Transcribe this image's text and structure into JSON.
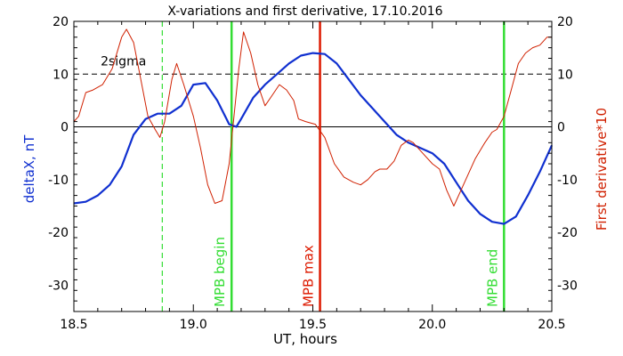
{
  "chart_data": {
    "type": "line",
    "title": "X-variations and first derivative, 17.10.2016",
    "xlabel": "UT, hours",
    "ylabel_left": "deltaX, nT",
    "ylabel_right": "First derivative*10",
    "xlim": [
      18.5,
      20.5
    ],
    "ylim": [
      -35,
      20
    ],
    "x_ticks": [
      "18.5",
      "19.0",
      "19.5",
      "20.0",
      "20.5"
    ],
    "y_ticks": [
      "20",
      "10",
      "0",
      "-10",
      "-20",
      "-30"
    ],
    "grid": false,
    "colors": {
      "deltaX": "#1030d0",
      "derivative": "#d02000",
      "mpb_green": "#33dd33",
      "mpb_max_red": "#dd1a00",
      "axes": "#000000"
    },
    "reference_lines": [
      {
        "y": 10,
        "style": "dashed",
        "label": "2sigma"
      },
      {
        "y": 0,
        "style": "solid"
      }
    ],
    "markers": [
      {
        "x": 18.87,
        "style": "dashed",
        "color": "green",
        "label": ""
      },
      {
        "x": 19.16,
        "style": "solid",
        "color": "green",
        "label": "MPB begin"
      },
      {
        "x": 19.53,
        "style": "solid",
        "color": "red",
        "label": "MPB max"
      },
      {
        "x": 20.3,
        "style": "solid",
        "color": "green",
        "label": "MPB end"
      }
    ],
    "series": [
      {
        "axis": "left",
        "color": "#1030d0",
        "points": [
          [
            18.5,
            -14.5
          ],
          [
            18.55,
            -14.2
          ],
          [
            18.6,
            -13
          ],
          [
            18.65,
            -11
          ],
          [
            18.7,
            -7.5
          ],
          [
            18.75,
            -1.5
          ],
          [
            18.8,
            1.5
          ],
          [
            18.85,
            2.5
          ],
          [
            18.9,
            2.5
          ],
          [
            18.95,
            4
          ],
          [
            19.0,
            8
          ],
          [
            19.05,
            8.3
          ],
          [
            19.1,
            5
          ],
          [
            19.15,
            0.5
          ],
          [
            19.18,
            0
          ],
          [
            19.2,
            1.5
          ],
          [
            19.25,
            5.5
          ],
          [
            19.3,
            8
          ],
          [
            19.35,
            10
          ],
          [
            19.4,
            12
          ],
          [
            19.45,
            13.5
          ],
          [
            19.5,
            14
          ],
          [
            19.55,
            13.8
          ],
          [
            19.6,
            12
          ],
          [
            19.65,
            9
          ],
          [
            19.7,
            6
          ],
          [
            19.75,
            3.5
          ],
          [
            19.8,
            1
          ],
          [
            19.85,
            -1.5
          ],
          [
            19.9,
            -3
          ],
          [
            19.95,
            -4
          ],
          [
            20.0,
            -5
          ],
          [
            20.05,
            -7
          ],
          [
            20.1,
            -10.5
          ],
          [
            20.15,
            -14
          ],
          [
            20.2,
            -16.5
          ],
          [
            20.25,
            -18
          ],
          [
            20.3,
            -18.4
          ],
          [
            20.35,
            -17
          ],
          [
            20.4,
            -13
          ],
          [
            20.45,
            -8.5
          ],
          [
            20.5,
            -3.5
          ]
        ]
      },
      {
        "axis": "right",
        "color": "#d02000",
        "points": [
          [
            18.5,
            1
          ],
          [
            18.52,
            2
          ],
          [
            18.55,
            6.5
          ],
          [
            18.58,
            7
          ],
          [
            18.62,
            8
          ],
          [
            18.66,
            11
          ],
          [
            18.7,
            17
          ],
          [
            18.72,
            18.5
          ],
          [
            18.75,
            16
          ],
          [
            18.78,
            9
          ],
          [
            18.81,
            2
          ],
          [
            18.84,
            -0.5
          ],
          [
            18.86,
            -2
          ],
          [
            18.88,
            1
          ],
          [
            18.91,
            9
          ],
          [
            18.93,
            12
          ],
          [
            18.96,
            8
          ],
          [
            19.0,
            2
          ],
          [
            19.03,
            -4
          ],
          [
            19.06,
            -11
          ],
          [
            19.09,
            -14.5
          ],
          [
            19.12,
            -14
          ],
          [
            19.15,
            -7
          ],
          [
            19.17,
            2
          ],
          [
            19.19,
            11
          ],
          [
            19.21,
            18
          ],
          [
            19.24,
            14
          ],
          [
            19.27,
            8
          ],
          [
            19.3,
            4
          ],
          [
            19.33,
            6
          ],
          [
            19.36,
            8
          ],
          [
            19.39,
            7
          ],
          [
            19.42,
            5
          ],
          [
            19.44,
            1.5
          ],
          [
            19.47,
            1
          ],
          [
            19.51,
            0.5
          ],
          [
            19.55,
            -2
          ],
          [
            19.59,
            -7
          ],
          [
            19.63,
            -9.5
          ],
          [
            19.67,
            -10.5
          ],
          [
            19.7,
            -11
          ],
          [
            19.73,
            -10
          ],
          [
            19.76,
            -8.5
          ],
          [
            19.78,
            -8
          ],
          [
            19.81,
            -8
          ],
          [
            19.84,
            -6.5
          ],
          [
            19.87,
            -3.5
          ],
          [
            19.9,
            -2.5
          ],
          [
            19.92,
            -3
          ],
          [
            19.96,
            -5
          ],
          [
            20.0,
            -7
          ],
          [
            20.03,
            -8
          ],
          [
            20.06,
            -12
          ],
          [
            20.09,
            -15
          ],
          [
            20.12,
            -12
          ],
          [
            20.15,
            -9
          ],
          [
            20.18,
            -6
          ],
          [
            20.22,
            -3
          ],
          [
            20.25,
            -1
          ],
          [
            20.27,
            -0.5
          ],
          [
            20.3,
            2
          ],
          [
            20.33,
            7
          ],
          [
            20.36,
            12
          ],
          [
            20.39,
            14
          ],
          [
            20.42,
            15
          ],
          [
            20.45,
            15.5
          ],
          [
            20.48,
            17
          ],
          [
            20.5,
            17
          ]
        ]
      }
    ]
  }
}
